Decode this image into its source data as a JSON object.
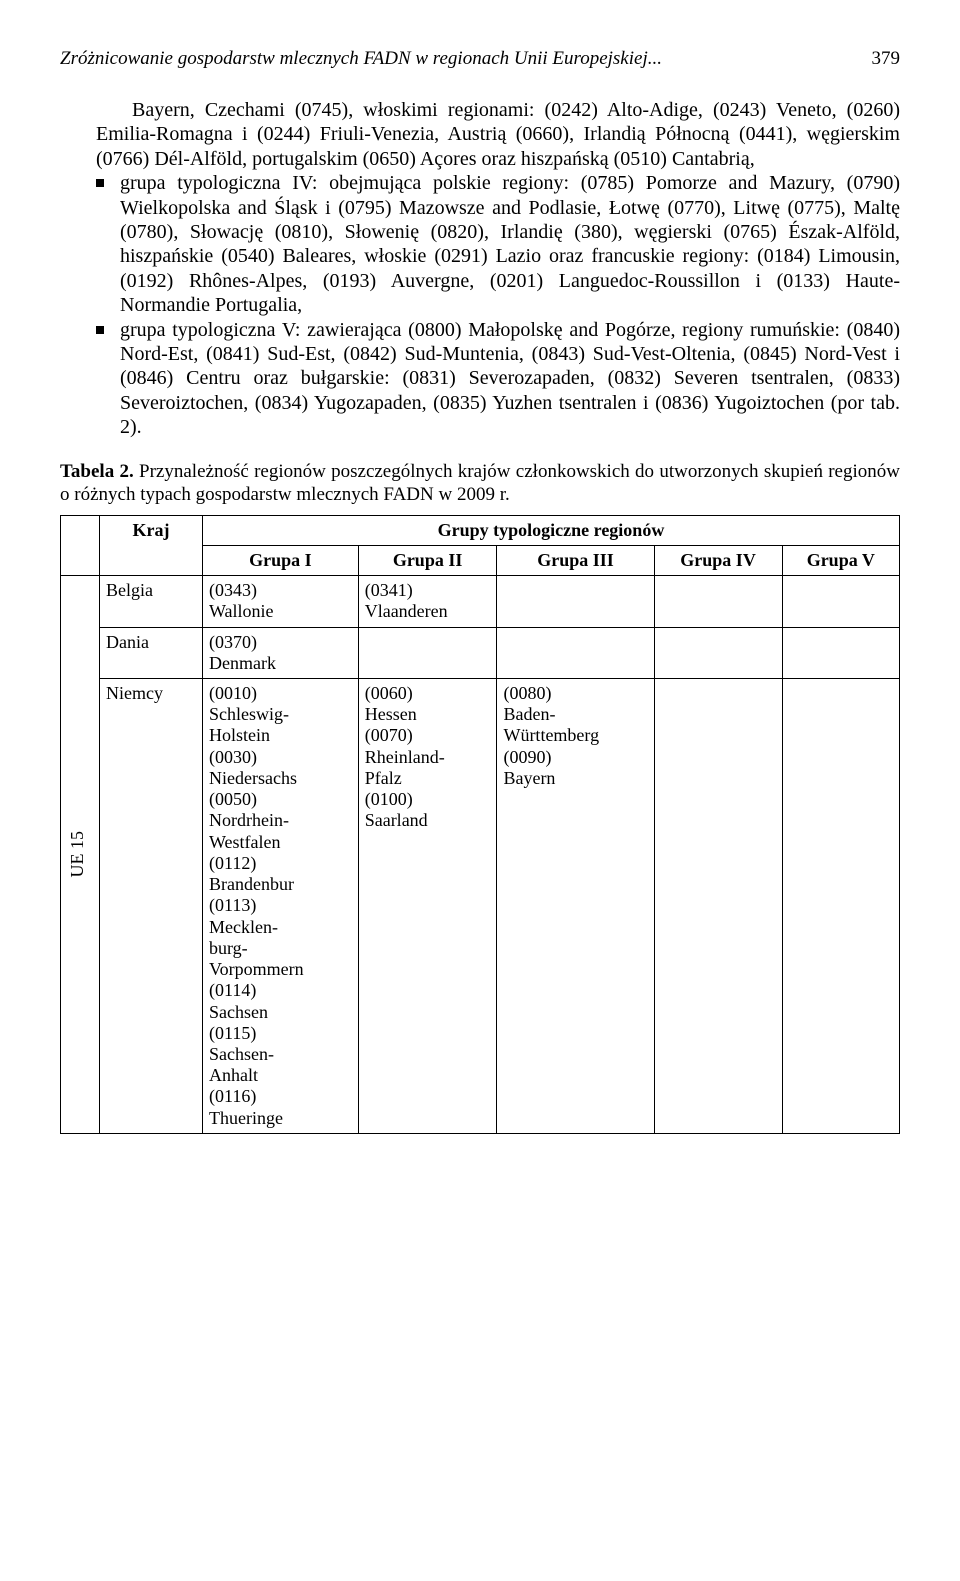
{
  "header": {
    "running_title": "Zróżnicowanie gospodarstw mlecznych FADN w regionach Unii Europejskiej...",
    "page_number": "379"
  },
  "para_first": "Bayern, Czechami (0745), włoskimi regionami: (0242) Alto-Adige, (0243) Veneto, (0260) Emilia-Romagna i (0244) Friuli-Venezia, Austrią (0660), Irlandią Północną (0441), węgierskim (0766) Dél-Alföld, portugalskim (0650) Açores oraz hiszpańską (0510) Cantabrią,",
  "bullets": [
    "grupa typologiczna IV: obejmująca polskie regiony: (0785) Pomorze and Mazury, (0790) Wielkopolska and Śląsk i (0795) Mazowsze and Podlasie, Łotwę (0770), Litwę (0775), Maltę (0780), Słowację (0810), Słowenię (0820), Irlandię (380), węgierski (0765) Észak-Alföld, hiszpańskie (0540) Baleares, włoskie (0291) Lazio oraz francuskie regiony: (0184) Limousin, (0192) Rhônes-Alpes, (0193) Auvergne, (0201) Languedoc-Roussillon i (0133) Haute-Normandie Portugalia,",
    "grupa typologiczna V: zawierająca (0800) Małopolskę and Pogórze, regiony rumuńskie: (0840) Nord-Est, (0841) Sud-Est, (0842) Sud-Muntenia, (0843) Sud-Vest-Oltenia, (0845) Nord-Vest i (0846) Centru oraz bułgarskie: (0831) Severozapaden, (0832) Severen tsentralen, (0833) Severoiztochen, (0834) Yugozapaden, (0835) Yuzhen tsentralen i (0836) Yugoiztochen (por tab. 2)."
  ],
  "table": {
    "caption_lead": "Tabela 2.",
    "caption_rest": " Przynależność regionów poszczególnych krajów członkowskich do utworzonych skupień regionów o różnych typach gospodarstw mlecznych FADN w 2009 r.",
    "head": {
      "kraj": "Kraj",
      "groups_header": "Grupy typologiczne regionów",
      "g1": "Grupa I",
      "g2": "Grupa II",
      "g3": "Grupa III",
      "g4": "Grupa IV",
      "g5": "Grupa V"
    },
    "side_label": "UE 15",
    "rows": [
      {
        "kraj": "Belgia",
        "g1": "(0343)\nWallonie",
        "g2": "(0341)\nVlaanderen",
        "g3": "",
        "g4": "",
        "g5": ""
      },
      {
        "kraj": "Dania",
        "g1": "(0370)\nDenmark",
        "g2": "",
        "g3": "",
        "g4": "",
        "g5": ""
      },
      {
        "kraj": "Niemcy",
        "g1": "(0010)\nSchleswig-\nHolstein\n(0030)\nNiedersachs\n(0050)\nNordrhein-\nWestfalen\n(0112)\nBrandenbur\n(0113)\nMecklen-\nburg-\nVorpommern\n(0114)\nSachsen\n(0115)\nSachsen-\nAnhalt\n(0116)\nThueringe",
        "g2": "(0060)\nHessen\n(0070)\nRheinland-\nPfalz\n(0100)\nSaarland",
        "g3": "(0080)\nBaden-\nWürttemberg\n(0090)\nBayern",
        "g4": "",
        "g5": ""
      }
    ]
  }
}
